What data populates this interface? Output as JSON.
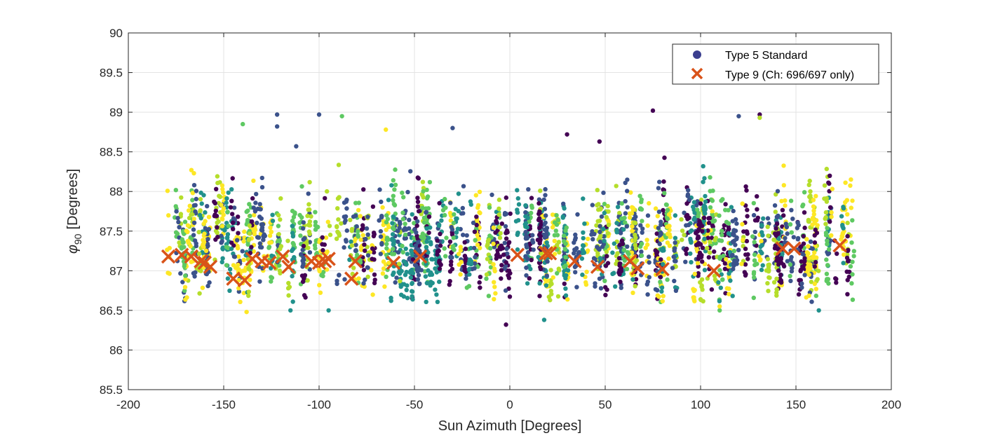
{
  "chart_data": {
    "type": "scatter",
    "title": "",
    "xlabel": "Sun Azimuth [Degrees]",
    "ylabel_symbol": "φ",
    "ylabel_sub": "90",
    "ylabel_unit": "[Degrees]",
    "xlim": [
      -200,
      200
    ],
    "ylim": [
      85.5,
      90
    ],
    "xticks": [
      -200,
      -150,
      -100,
      -50,
      0,
      50,
      100,
      150,
      200
    ],
    "yticks": [
      85.5,
      86,
      86.5,
      87,
      87.5,
      88,
      88.5,
      89,
      89.5,
      90
    ],
    "xtick_labels": [
      "-200",
      "-150",
      "-100",
      "-50",
      "0",
      "50",
      "100",
      "150",
      "200"
    ],
    "ytick_labels": [
      "85.5",
      "86",
      "86.5",
      "87",
      "87.5",
      "88",
      "88.5",
      "89",
      "89.5",
      "90"
    ],
    "grid": true,
    "legend_position": "top-right",
    "colormap": [
      "#440154",
      "#3b528b",
      "#21918c",
      "#5ec962",
      "#b5de2b",
      "#fde725"
    ],
    "series": [
      {
        "name": "Type 5 Standard",
        "marker": "circle",
        "legend_color": "#3b3f8f",
        "note_x_range": [
          -180,
          180
        ],
        "note_y_center": 87.35,
        "note_y_spread": 0.45,
        "outliers": [
          {
            "x": -140,
            "y": 88.85
          },
          {
            "x": -122,
            "y": 88.97
          },
          {
            "x": -122,
            "y": 88.82
          },
          {
            "x": -100,
            "y": 88.97
          },
          {
            "x": -88,
            "y": 88.95
          },
          {
            "x": -112,
            "y": 88.57
          },
          {
            "x": -65,
            "y": 88.78
          },
          {
            "x": -30,
            "y": 88.8
          },
          {
            "x": 75,
            "y": 89.02
          },
          {
            "x": 120,
            "y": 88.95
          },
          {
            "x": 131,
            "y": 88.97
          },
          {
            "x": 131,
            "y": 88.93
          },
          {
            "x": 30,
            "y": 88.72
          },
          {
            "x": 47,
            "y": 88.63
          },
          {
            "x": -2,
            "y": 86.32
          },
          {
            "x": 18,
            "y": 86.38
          },
          {
            "x": -138,
            "y": 86.48
          },
          {
            "x": -115,
            "y": 86.5
          },
          {
            "x": 110,
            "y": 86.5
          },
          {
            "x": 162,
            "y": 86.5
          },
          {
            "x": 110,
            "y": 86.55
          },
          {
            "x": -95,
            "y": 86.5
          }
        ]
      },
      {
        "name": "Type 9 (Ch: 696/697 only)",
        "marker": "x",
        "color": "#d95319",
        "points": [
          {
            "x": -179,
            "y": 87.18
          },
          {
            "x": -172,
            "y": 87.2
          },
          {
            "x": -167,
            "y": 87.18
          },
          {
            "x": -162,
            "y": 87.12
          },
          {
            "x": -160,
            "y": 87.1
          },
          {
            "x": -157,
            "y": 87.05
          },
          {
            "x": -145,
            "y": 86.9
          },
          {
            "x": -139,
            "y": 86.88
          },
          {
            "x": -135,
            "y": 87.15
          },
          {
            "x": -130,
            "y": 87.12
          },
          {
            "x": -126,
            "y": 87.1
          },
          {
            "x": -119,
            "y": 87.18
          },
          {
            "x": -116,
            "y": 87.05
          },
          {
            "x": -104,
            "y": 87.12
          },
          {
            "x": -100,
            "y": 87.1
          },
          {
            "x": -97,
            "y": 87.12
          },
          {
            "x": -95,
            "y": 87.15
          },
          {
            "x": -83,
            "y": 86.9
          },
          {
            "x": -81,
            "y": 87.12
          },
          {
            "x": -61,
            "y": 87.1
          },
          {
            "x": -47,
            "y": 87.18
          },
          {
            "x": 4,
            "y": 87.2
          },
          {
            "x": 19,
            "y": 87.22
          },
          {
            "x": 21,
            "y": 87.22
          },
          {
            "x": 34,
            "y": 87.12
          },
          {
            "x": 46,
            "y": 87.05
          },
          {
            "x": 63,
            "y": 87.12
          },
          {
            "x": 67,
            "y": 87.03
          },
          {
            "x": 80,
            "y": 87.02
          },
          {
            "x": 107,
            "y": 87.0
          },
          {
            "x": 143,
            "y": 87.28
          },
          {
            "x": 149,
            "y": 87.28
          },
          {
            "x": 173,
            "y": 87.32
          }
        ]
      }
    ]
  }
}
